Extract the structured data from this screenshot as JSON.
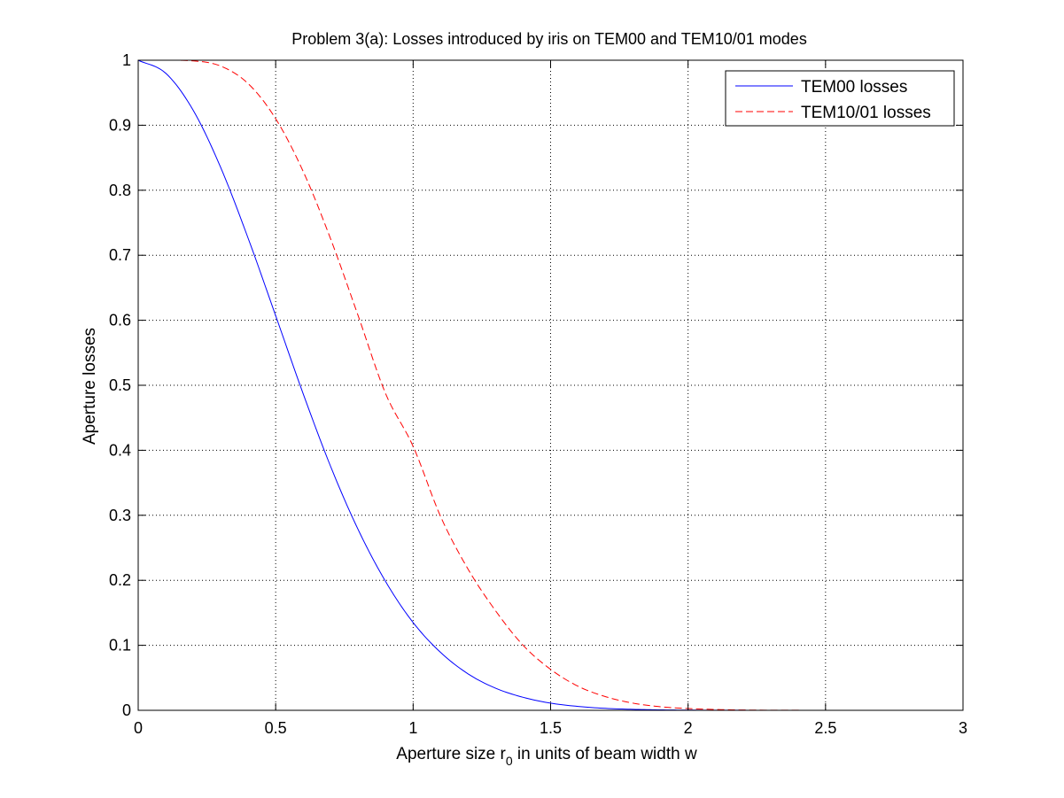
{
  "chart_data": {
    "type": "line",
    "title": "Problem 3(a): Losses introduced by iris on TEM00 and TEM10/01 modes",
    "xlabel": {
      "prefix": "Aperture size r",
      "subscript": "0",
      "suffix": " in units of beam width w"
    },
    "ylabel": "Aperture losses",
    "xlim": [
      0,
      3
    ],
    "ylim": [
      0,
      1
    ],
    "xticks": [
      0,
      0.5,
      1,
      1.5,
      2,
      2.5,
      3
    ],
    "xtick_labels": [
      "0",
      "0.5",
      "1",
      "1.5",
      "2",
      "2.5",
      "3"
    ],
    "yticks": [
      0,
      0.1,
      0.2,
      0.3,
      0.4,
      0.5,
      0.6,
      0.7,
      0.8,
      0.9,
      1
    ],
    "ytick_labels": [
      "0",
      "0.1",
      "0.2",
      "0.3",
      "0.4",
      "0.5",
      "0.6",
      "0.7",
      "0.8",
      "0.9",
      "1"
    ],
    "grid": true,
    "legend_position": "top-right",
    "series": [
      {
        "name": "TEM00 losses",
        "color": "#0000ff",
        "style": "solid",
        "x": [
          0,
          0.1,
          0.2,
          0.3,
          0.4,
          0.5,
          0.6,
          0.7,
          0.8,
          0.9,
          1.0,
          1.1,
          1.2,
          1.3,
          1.4,
          1.5,
          1.6,
          1.7,
          1.8,
          1.9,
          2.0,
          2.2,
          2.4,
          2.6,
          2.8,
          3.0
        ],
        "y": [
          1.0,
          0.98,
          0.923,
          0.835,
          0.726,
          0.607,
          0.487,
          0.375,
          0.278,
          0.198,
          0.135,
          0.089,
          0.056,
          0.034,
          0.02,
          0.011,
          0.006,
          0.003,
          0.0015,
          0.0007,
          0.0003,
          0.0001,
          0.0,
          0.0,
          0.0,
          0.0
        ]
      },
      {
        "name": "TEM10/01 losses",
        "color": "#ff0000",
        "style": "dashed",
        "x": [
          0,
          0.1,
          0.2,
          0.3,
          0.4,
          0.5,
          0.6,
          0.7,
          0.8,
          0.9,
          1.0,
          1.1,
          1.2,
          1.3,
          1.4,
          1.5,
          1.6,
          1.7,
          1.8,
          1.9,
          2.0,
          2.1,
          2.2,
          2.4,
          2.6,
          2.8,
          3.0
        ],
        "y": [
          1.0,
          1.0,
          0.999,
          0.991,
          0.964,
          0.91,
          0.829,
          0.725,
          0.607,
          0.487,
          0.406,
          0.298,
          0.217,
          0.153,
          0.1,
          0.063,
          0.037,
          0.021,
          0.011,
          0.0055,
          0.0027,
          0.0013,
          0.0005,
          0.0001,
          0.0,
          0.0,
          0.0
        ]
      }
    ]
  }
}
